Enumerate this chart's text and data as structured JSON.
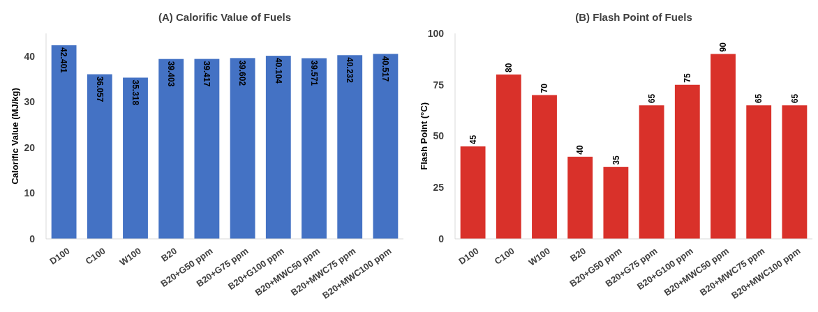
{
  "chart_data": [
    {
      "type": "bar",
      "title": "(A) Calorific Value of Fuels",
      "ylabel": "Calorific Value (MJ/kg)",
      "categories": [
        "D100",
        "C100",
        "W100",
        "B20",
        "B20+G50 ppm",
        "B20+G75 ppm",
        "B20+G100 ppm",
        "B20+MWC50 ppm",
        "B20+MWC75 ppm",
        "B20+MWC100 ppm"
      ],
      "values": [
        42.401,
        36.057,
        35.318,
        39.403,
        39.417,
        39.602,
        40.104,
        39.571,
        40.232,
        40.517
      ],
      "color": "#4472c4",
      "ylim": [
        0,
        45
      ],
      "yticks": [
        0,
        10,
        20,
        30,
        40
      ],
      "data_labels": true,
      "grid": false
    },
    {
      "type": "bar",
      "title": "(B) Flash Point of Fuels",
      "ylabel": "Flash Point (°C)",
      "categories": [
        "D100",
        "C100",
        "W100",
        "B20",
        "B20+G50 ppm",
        "B20+G75 ppm",
        "B20+G100 ppm",
        "B20+MWC50 ppm",
        "B20+MWC75 ppm",
        "B20+MWC100 ppm"
      ],
      "values": [
        45,
        80,
        70,
        40,
        35,
        65,
        75,
        90,
        65,
        65
      ],
      "color": "#d9312a",
      "ylim": [
        0,
        100
      ],
      "yticks": [
        0,
        25,
        50,
        75,
        100
      ],
      "data_labels": true,
      "grid": false
    }
  ]
}
